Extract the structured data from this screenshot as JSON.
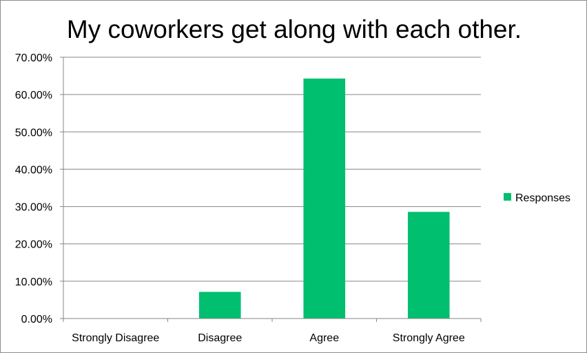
{
  "chart_data": {
    "type": "bar",
    "title": "My coworkers get along with each other.",
    "xlabel": "",
    "ylabel": "",
    "categories": [
      "Strongly Disagree",
      "Disagree",
      "Agree",
      "Strongly Agree"
    ],
    "series": [
      {
        "name": "Responses",
        "values": [
          0.0,
          7.14,
          64.29,
          28.57
        ],
        "color": "#00BF6F"
      }
    ],
    "ylim": [
      0,
      70
    ],
    "yticks": [
      0,
      10,
      20,
      30,
      40,
      50,
      60,
      70
    ],
    "ytick_labels": [
      "0.00%",
      "10.00%",
      "20.00%",
      "30.00%",
      "40.00%",
      "50.00%",
      "60.00%",
      "70.00%"
    ],
    "grid": true,
    "legend_position": "right",
    "gridline_color": "#868686",
    "axis_color": "#868686"
  }
}
